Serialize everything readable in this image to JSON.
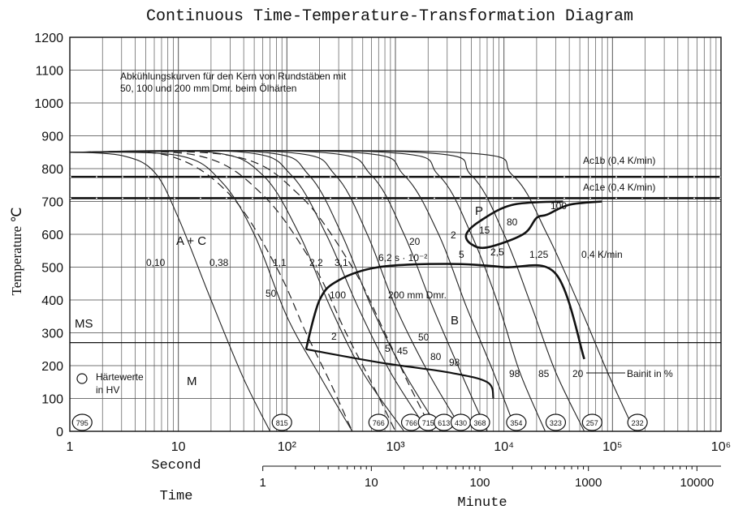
{
  "chart_data": {
    "type": "line",
    "title": "Continuous Time-Temperature-Transformation Diagram",
    "xlabel": "Second",
    "ylabel": "Temperature ℃",
    "x_scale": "log",
    "xlim": [
      1,
      1000000
    ],
    "ylim": [
      0,
      1200
    ],
    "x_ticks": [
      "1",
      "10",
      "10²",
      "10³",
      "10⁴",
      "10⁵",
      "10⁶"
    ],
    "y_ticks": [
      "0",
      "100",
      "200",
      "300",
      "400",
      "500",
      "600",
      "700",
      "800",
      "900",
      "1000",
      "1100",
      "1200"
    ],
    "grid": true,
    "secondary_axis": {
      "label": "Minute",
      "time_label": "Time",
      "ticks": [
        "1",
        "10",
        "100",
        "1000",
        "10000"
      ]
    },
    "note": "Abkühlungskurven für den Kern von Rundstäben mit 50, 100 und 200 mm Dmr. beim Ölhärten",
    "lines": {
      "ac1b": {
        "label": "Ac1b (0,4 K/min)",
        "y": 775
      },
      "ac1e": {
        "label": "Ac1e (0,4 K/min)",
        "y": 710
      },
      "ms": {
        "label": "MS",
        "y": 270
      }
    },
    "phase_labels": [
      "A + C",
      "P",
      "B",
      "M"
    ],
    "cooling_rate_labels": [
      "0,10",
      "0,38",
      "1,1",
      "2,2",
      "3,1",
      "6,2 s · 10⁻²",
      "20",
      "5",
      "2,5",
      "1,25",
      "0,4 K/min"
    ],
    "diameter_labels": [
      "50",
      "100",
      "200 mm Dmr."
    ],
    "fraction_labels": [
      "2",
      "15",
      "80",
      "100",
      "2",
      "5",
      "45",
      "50",
      "80",
      "98",
      "98",
      "85",
      "20"
    ],
    "bainite_legend": "Bainit in %",
    "hardness_legend": "Härtewerte in HV",
    "hardness_values": [
      {
        "t": 1.3,
        "hv": "795"
      },
      {
        "t": 90,
        "hv": "815"
      },
      {
        "t": 700,
        "hv": "766"
      },
      {
        "t": 1400,
        "hv": "766"
      },
      {
        "t": 2000,
        "hv": "715"
      },
      {
        "t": 2800,
        "hv": "613"
      },
      {
        "t": 4000,
        "hv": "430"
      },
      {
        "t": 6000,
        "hv": "368"
      },
      {
        "t": 13000,
        "hv": "354"
      },
      {
        "t": 30000,
        "hv": "323"
      },
      {
        "t": 65000,
        "hv": "257"
      },
      {
        "t": 170000,
        "hv": "232"
      }
    ],
    "cooling_curves": [
      {
        "t": [
          1,
          3,
          6,
          10,
          20,
          40,
          70
        ],
        "y": [
          850,
          840,
          790,
          650,
          400,
          160,
          0
        ]
      },
      {
        "t": [
          1,
          10,
          25,
          50,
          100,
          200,
          400
        ],
        "y": [
          850,
          840,
          760,
          600,
          350,
          170,
          0
        ]
      },
      {
        "t": [
          1,
          20,
          60,
          130,
          250,
          500,
          1200
        ],
        "y": [
          850,
          850,
          780,
          600,
          380,
          180,
          0
        ]
      },
      {
        "t": [
          1,
          40,
          110,
          230,
          450,
          900,
          2000
        ],
        "y": [
          850,
          850,
          780,
          600,
          380,
          180,
          0
        ]
      },
      {
        "t": [
          1,
          60,
          160,
          320,
          600,
          1200,
          2600
        ],
        "y": [
          850,
          850,
          780,
          600,
          380,
          180,
          0
        ]
      },
      {
        "t": [
          1,
          100,
          280,
          550,
          1000,
          2000,
          4200
        ],
        "y": [
          850,
          850,
          780,
          600,
          380,
          180,
          0
        ]
      },
      {
        "t": [
          1,
          200,
          600,
          1200,
          2200,
          4000,
          7000
        ],
        "y": [
          850,
          850,
          780,
          600,
          380,
          180,
          0
        ]
      },
      {
        "t": [
          1,
          400,
          1200,
          2500,
          4500,
          8000,
          13000
        ],
        "y": [
          850,
          850,
          780,
          600,
          380,
          180,
          0
        ]
      },
      {
        "t": [
          1,
          800,
          2500,
          5000,
          9000,
          14000,
          24000
        ],
        "y": [
          850,
          850,
          780,
          600,
          380,
          180,
          0
        ]
      },
      {
        "t": [
          1,
          1600,
          5000,
          10000,
          18000,
          30000,
          55000
        ],
        "y": [
          850,
          850,
          780,
          600,
          380,
          180,
          0
        ]
      },
      {
        "t": [
          1,
          3500,
          12000,
          25000,
          50000,
          90000,
          160000
        ],
        "y": [
          850,
          850,
          780,
          600,
          380,
          180,
          0
        ]
      }
    ],
    "diameter_curves": [
      {
        "t": [
          1,
          8,
          30,
          80,
          150,
          250,
          400
        ],
        "y": [
          850,
          840,
          720,
          500,
          300,
          150,
          0
        ]
      },
      {
        "t": [
          1,
          15,
          60,
          180,
          350,
          600,
          1000
        ],
        "y": [
          850,
          840,
          720,
          500,
          300,
          150,
          0
        ]
      },
      {
        "t": [
          1,
          30,
          130,
          400,
          800,
          1300,
          2200
        ],
        "y": [
          850,
          840,
          720,
          500,
          300,
          150,
          0
        ]
      }
    ],
    "pearlite_region": {
      "t": [
        35000,
        12000,
        6000,
        4500,
        5000,
        7000,
        15000,
        20000,
        25000,
        40000,
        80000
      ],
      "y": [
        700,
        690,
        640,
        600,
        570,
        560,
        600,
        650,
        660,
        690,
        700
      ]
    },
    "bainite_region": {
      "t": [
        150,
        200,
        300,
        700,
        3000,
        10000,
        30000,
        55000
      ],
      "y": [
        250,
        400,
        460,
        500,
        510,
        500,
        480,
        220
      ]
    },
    "bainite_finish": {
      "t": [
        150,
        700,
        3000,
        7000,
        8000
      ],
      "y": [
        250,
        210,
        180,
        150,
        100
      ]
    }
  }
}
